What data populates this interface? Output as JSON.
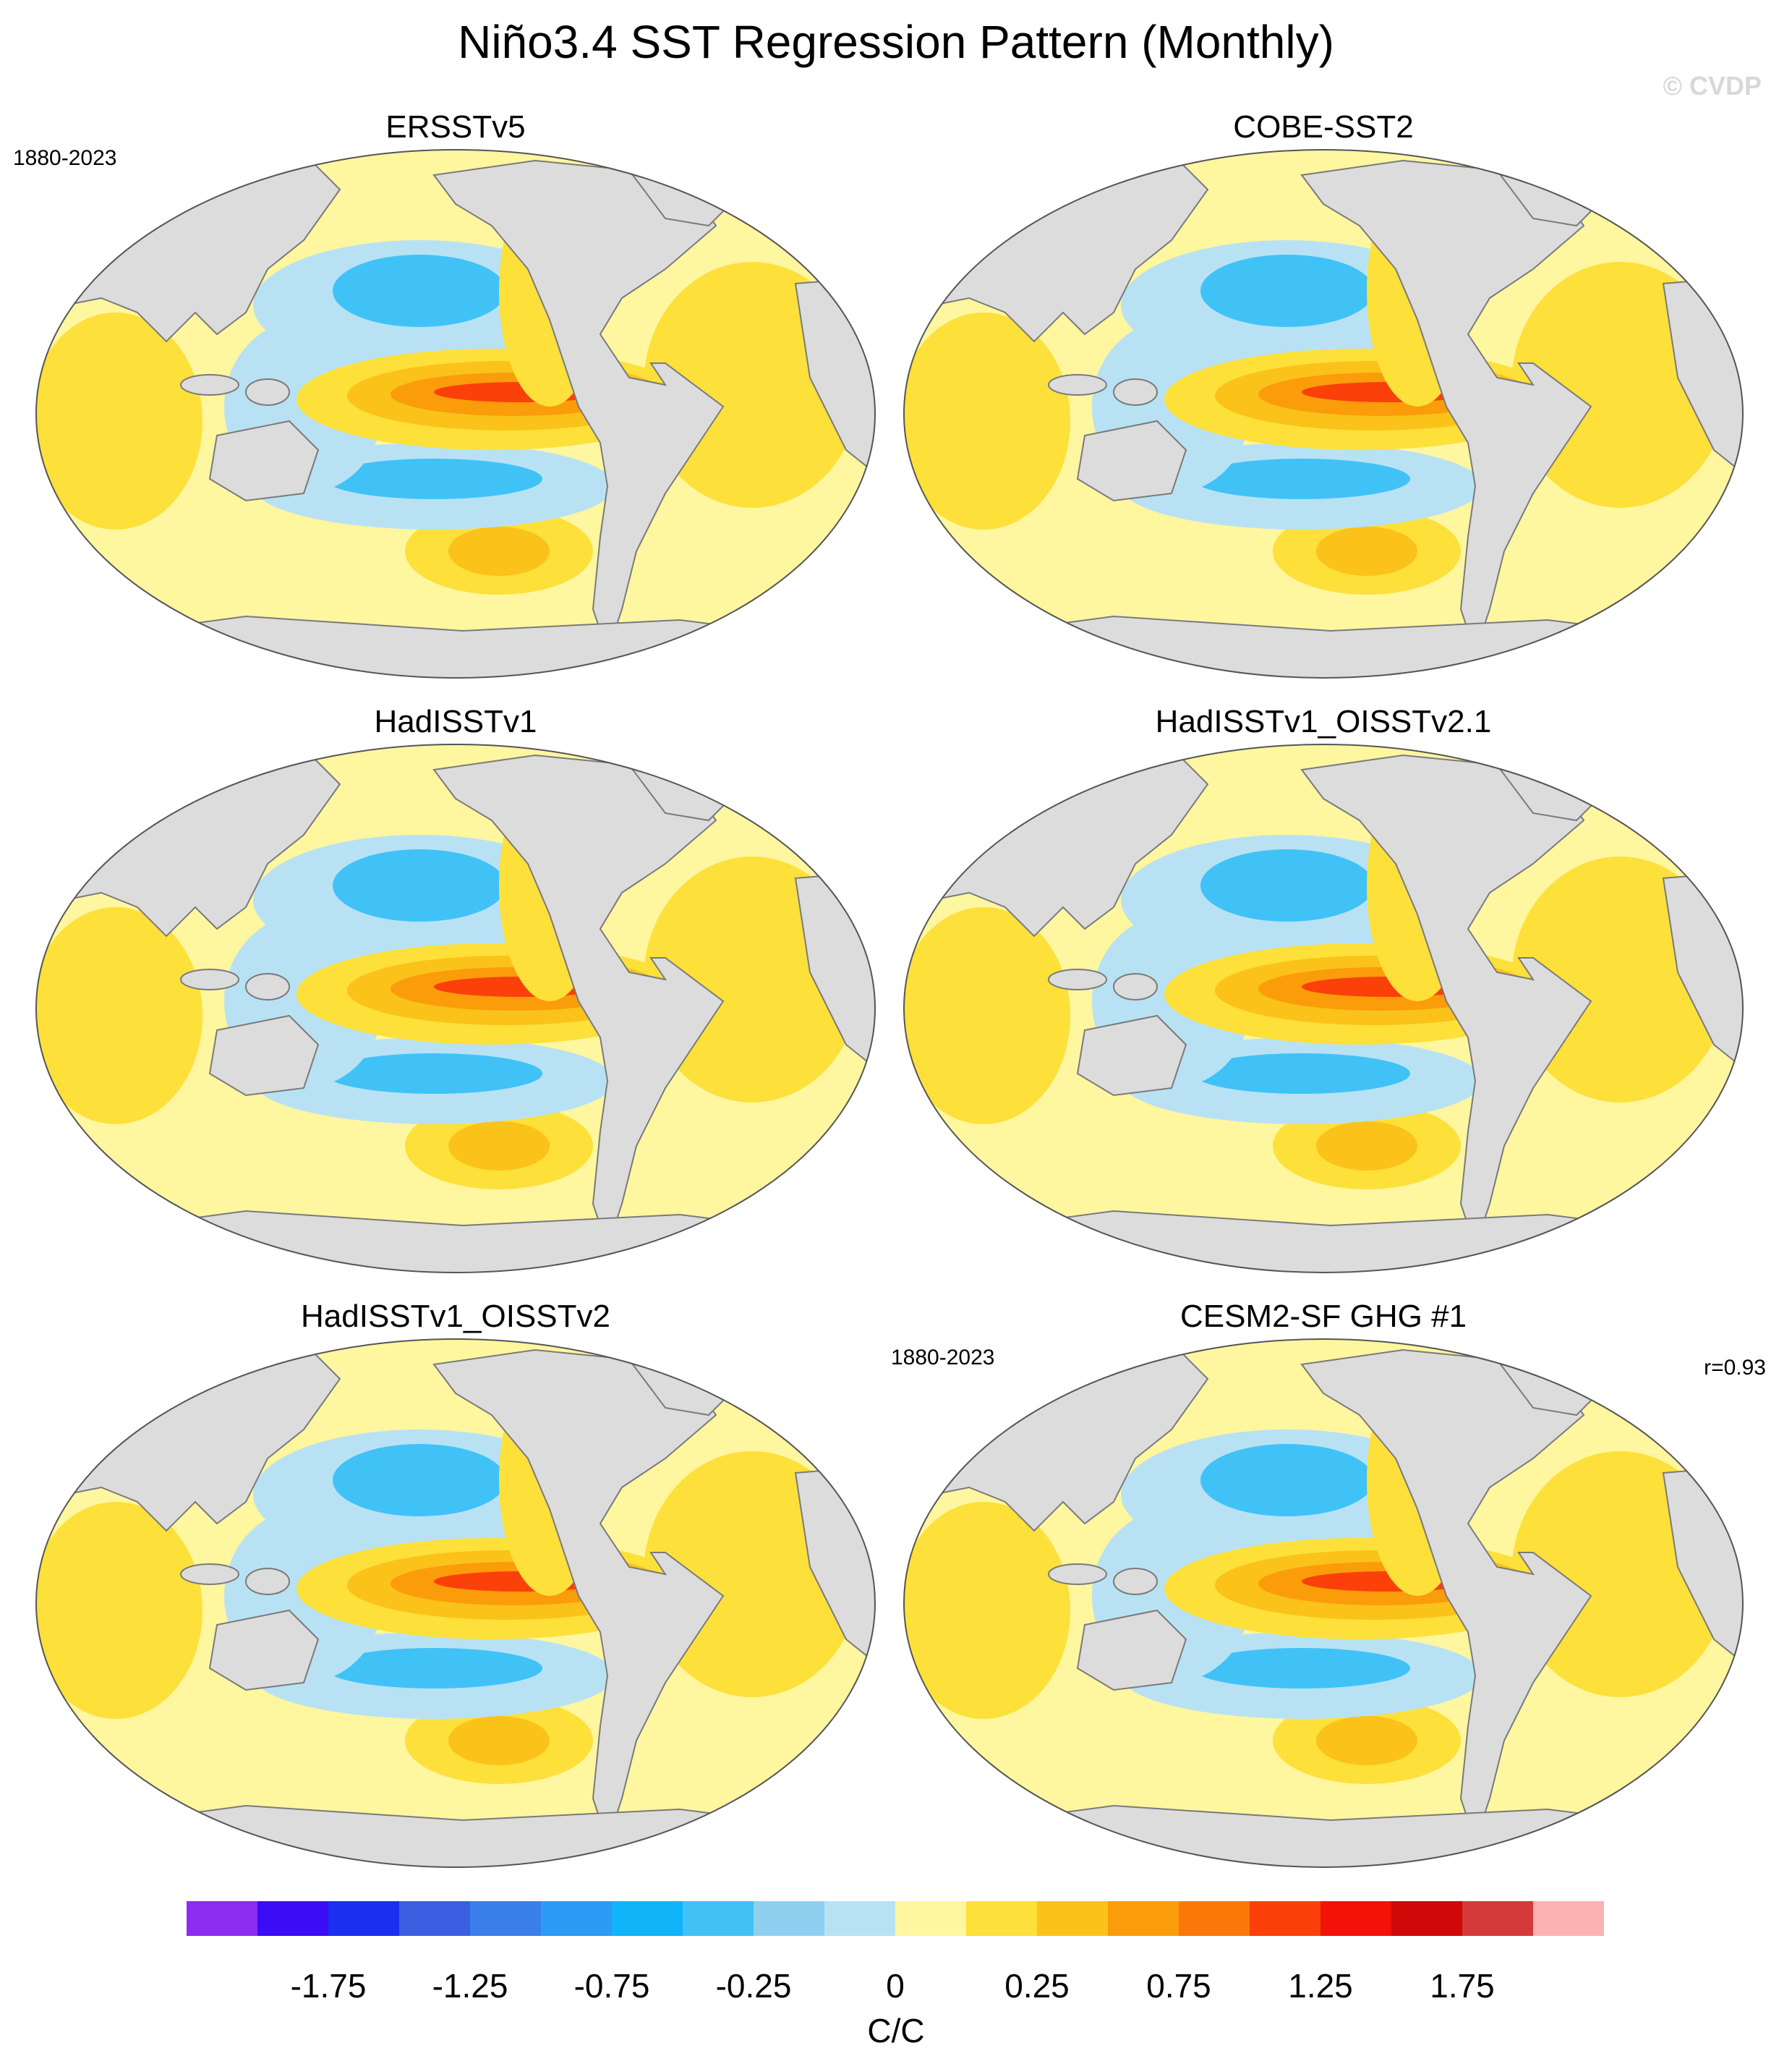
{
  "title": "Niño3.4 SST Regression Pattern (Monthly)",
  "watermark": "© CVDP",
  "panels": [
    {
      "name": "ERSSTv5",
      "period": "1880-2023",
      "r": ""
    },
    {
      "name": "COBE-SST2",
      "period": "",
      "r": ""
    },
    {
      "name": "HadISSTv1",
      "period": "",
      "r": ""
    },
    {
      "name": "HadISSTv1_OISSTv2.1",
      "period": "",
      "r": ""
    },
    {
      "name": "HadISSTv1_OISSTv2",
      "period": "",
      "r": ""
    },
    {
      "name": "CESM2-SF GHG #1",
      "period": "1880-2023",
      "r": "r=0.93"
    }
  ],
  "colorbar": {
    "colors": [
      "#8c2cf0",
      "#3b0cf5",
      "#1a2ff0",
      "#3b5fe0",
      "#3b7fea",
      "#2b9bf5",
      "#10b4f8",
      "#40c2f7",
      "#8fcfef",
      "#b8e2f4",
      "#fff6a0",
      "#fde03a",
      "#fbc21a",
      "#fb9c0a",
      "#fb7808",
      "#fb400a",
      "#f21208",
      "#d00808",
      "#d43a3a",
      "#fbb2b2"
    ],
    "ticks": [
      "-1.75",
      "-1.25",
      "-0.75",
      "-0.25",
      "0",
      "0.25",
      "0.75",
      "1.25",
      "1.75"
    ],
    "units": "C/C"
  },
  "legend_scale": {
    "levels": [
      -2.0,
      -1.75,
      -1.5,
      -1.25,
      -1.0,
      -0.75,
      -0.5,
      -0.25,
      -0.1,
      0,
      0.1,
      0.25,
      0.5,
      0.75,
      1.0,
      1.25,
      1.5,
      1.75,
      2.0
    ],
    "colors": {
      "land": "#dcdcdc",
      "neg_strong": "#40c2f7",
      "neg_weak": "#b8e2f4",
      "pos_weak": "#fff6a0",
      "pos_mid": "#fde03a",
      "pos_high": "#fbc21a",
      "pos_peak": "#fb9c0a",
      "pos_max": "#fb400a"
    }
  }
}
